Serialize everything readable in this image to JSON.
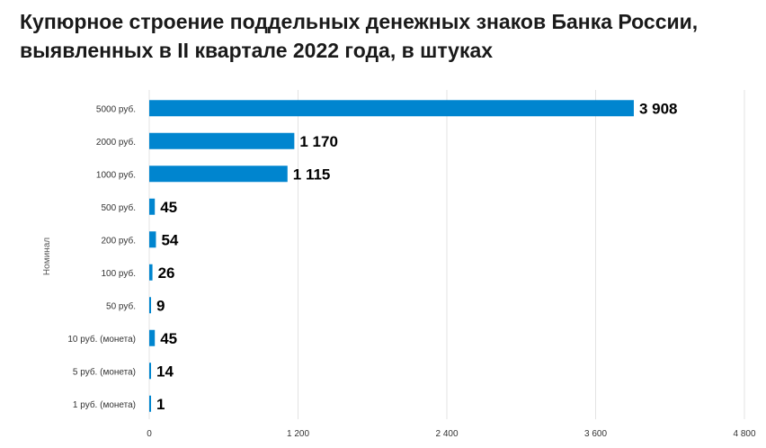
{
  "chart_data": {
    "type": "bar",
    "orientation": "horizontal",
    "title": "Купюрное строение поддельных денежных знаков Банка России, выявленных в II квартале 2022 года, в штуках",
    "ylabel": "Номинал",
    "xlabel": "",
    "categories": [
      "5000 руб.",
      "2000 руб.",
      "1000 руб.",
      "500 руб.",
      "200 руб.",
      "100 руб.",
      "50 руб.",
      "10 руб. (монета)",
      "5 руб. (монета)",
      "1 руб. (монета)"
    ],
    "values": [
      3908,
      1170,
      1115,
      45,
      54,
      26,
      9,
      45,
      14,
      1
    ],
    "value_labels": [
      "3 908",
      "1 170",
      "1 115",
      "45",
      "54",
      "26",
      "9",
      "45",
      "14",
      "1"
    ],
    "xlim": [
      0,
      4800
    ],
    "xticks": [
      0,
      1200,
      2400,
      3600,
      4800
    ],
    "xtick_labels": [
      "0",
      "1 200",
      "2 400",
      "3 600",
      "4 800"
    ],
    "grid": "vertical",
    "legend": "none",
    "bar_color": "#0085CF"
  }
}
